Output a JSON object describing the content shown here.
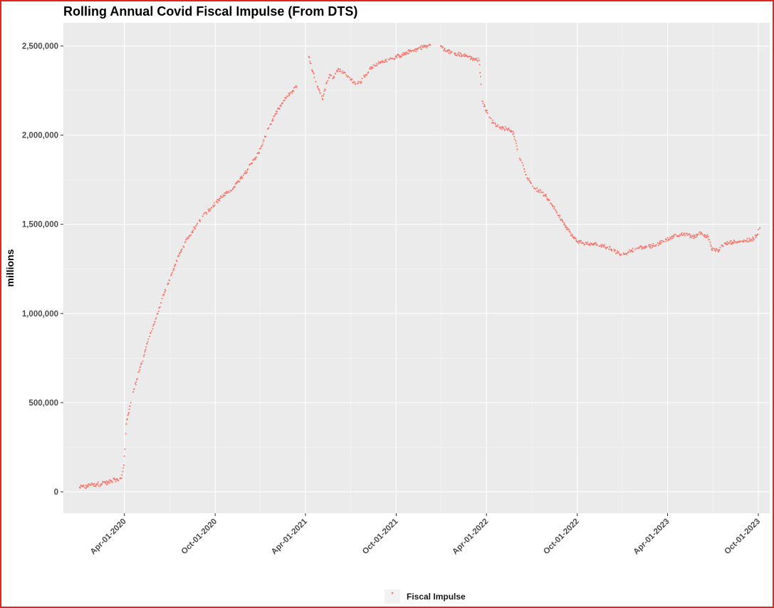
{
  "chart_data": {
    "type": "scatter",
    "title": "Rolling Annual Covid Fiscal Impulse (From DTS)",
    "xlabel": "",
    "ylabel": "millions",
    "x_ticks": [
      "Apr-01-2020",
      "Oct-01-2020",
      "Apr-01-2021",
      "Oct-01-2021",
      "Apr-01-2022",
      "Oct-01-2022",
      "Apr-01-2023",
      "Oct-01-2023"
    ],
    "y_ticks": [
      "0",
      "500,000",
      "1,000,000",
      "1,500,000",
      "2,000,000",
      "2,500,000"
    ],
    "xlim": [
      "2019-11-30",
      "2023-10-24"
    ],
    "ylim": [
      -120000,
      2630000
    ],
    "grid": true,
    "legend_position": "bottom",
    "colors": {
      "series": "#f8766d",
      "panel": "#ebebeb",
      "grid_major": "#ffffff",
      "grid_minor": "#f5f5f5",
      "frame": "#e8231f"
    },
    "series": [
      {
        "name": "Fiscal Impulse",
        "points": [
          [
            "2020-01-02",
            25000
          ],
          [
            "2020-01-09",
            30000
          ],
          [
            "2020-01-16",
            28000
          ],
          [
            "2020-01-23",
            40000
          ],
          [
            "2020-01-30",
            35000
          ],
          [
            "2020-02-06",
            45000
          ],
          [
            "2020-02-13",
            42000
          ],
          [
            "2020-02-20",
            55000
          ],
          [
            "2020-02-27",
            50000
          ],
          [
            "2020-03-05",
            60000
          ],
          [
            "2020-03-12",
            70000
          ],
          [
            "2020-03-19",
            65000
          ],
          [
            "2020-03-26",
            75000
          ],
          [
            "2020-03-31",
            150000
          ],
          [
            "2020-04-05",
            380000
          ],
          [
            "2020-04-12",
            480000
          ],
          [
            "2020-04-19",
            560000
          ],
          [
            "2020-04-26",
            630000
          ],
          [
            "2020-05-03",
            700000
          ],
          [
            "2020-05-10",
            760000
          ],
          [
            "2020-05-17",
            830000
          ],
          [
            "2020-05-24",
            890000
          ],
          [
            "2020-05-31",
            940000
          ],
          [
            "2020-06-07",
            1000000
          ],
          [
            "2020-06-14",
            1060000
          ],
          [
            "2020-06-21",
            1120000
          ],
          [
            "2020-06-28",
            1170000
          ],
          [
            "2020-07-05",
            1220000
          ],
          [
            "2020-07-12",
            1270000
          ],
          [
            "2020-07-19",
            1320000
          ],
          [
            "2020-07-26",
            1360000
          ],
          [
            "2020-08-02",
            1400000
          ],
          [
            "2020-08-09",
            1430000
          ],
          [
            "2020-08-16",
            1460000
          ],
          [
            "2020-08-23",
            1490000
          ],
          [
            "2020-08-30",
            1520000
          ],
          [
            "2020-09-06",
            1545000
          ],
          [
            "2020-09-13",
            1565000
          ],
          [
            "2020-09-20",
            1585000
          ],
          [
            "2020-09-27",
            1605000
          ],
          [
            "2020-10-04",
            1625000
          ],
          [
            "2020-10-11",
            1645000
          ],
          [
            "2020-10-18",
            1660000
          ],
          [
            "2020-10-25",
            1675000
          ],
          [
            "2020-11-01",
            1690000
          ],
          [
            "2020-11-08",
            1710000
          ],
          [
            "2020-11-15",
            1735000
          ],
          [
            "2020-11-22",
            1760000
          ],
          [
            "2020-11-29",
            1785000
          ],
          [
            "2020-12-06",
            1810000
          ],
          [
            "2020-12-13",
            1840000
          ],
          [
            "2020-12-20",
            1870000
          ],
          [
            "2020-12-27",
            1900000
          ],
          [
            "2021-01-03",
            1940000
          ],
          [
            "2021-01-10",
            1990000
          ],
          [
            "2021-01-17",
            2040000
          ],
          [
            "2021-01-24",
            2080000
          ],
          [
            "2021-01-31",
            2120000
          ],
          [
            "2021-02-07",
            2150000
          ],
          [
            "2021-02-14",
            2180000
          ],
          [
            "2021-02-21",
            2210000
          ],
          [
            "2021-02-28",
            2230000
          ],
          [
            "2021-03-07",
            2250000
          ],
          [
            "2021-03-14",
            2270000
          ],
          [
            "2021-04-08",
            2440000
          ],
          [
            "2021-04-15",
            2360000
          ],
          [
            "2021-04-22",
            2300000
          ],
          [
            "2021-04-29",
            2250000
          ],
          [
            "2021-05-06",
            2200000
          ],
          [
            "2021-05-13",
            2290000
          ],
          [
            "2021-05-20",
            2340000
          ],
          [
            "2021-05-27",
            2320000
          ],
          [
            "2021-06-03",
            2360000
          ],
          [
            "2021-06-10",
            2370000
          ],
          [
            "2021-06-17",
            2350000
          ],
          [
            "2021-06-24",
            2330000
          ],
          [
            "2021-07-01",
            2310000
          ],
          [
            "2021-07-08",
            2300000
          ],
          [
            "2021-07-15",
            2290000
          ],
          [
            "2021-07-22",
            2300000
          ],
          [
            "2021-07-29",
            2330000
          ],
          [
            "2021-08-05",
            2350000
          ],
          [
            "2021-08-12",
            2380000
          ],
          [
            "2021-08-19",
            2390000
          ],
          [
            "2021-08-26",
            2400000
          ],
          [
            "2021-09-02",
            2410000
          ],
          [
            "2021-09-09",
            2420000
          ],
          [
            "2021-09-16",
            2425000
          ],
          [
            "2021-09-23",
            2430000
          ],
          [
            "2021-09-30",
            2440000
          ],
          [
            "2021-10-07",
            2445000
          ],
          [
            "2021-10-14",
            2450000
          ],
          [
            "2021-10-21",
            2460000
          ],
          [
            "2021-10-28",
            2470000
          ],
          [
            "2021-11-04",
            2475000
          ],
          [
            "2021-11-11",
            2480000
          ],
          [
            "2021-11-18",
            2490000
          ],
          [
            "2021-11-25",
            2495000
          ],
          [
            "2021-12-02",
            2500000
          ],
          [
            "2021-12-09",
            2505000
          ],
          [
            "2021-12-30",
            2500000
          ],
          [
            "2022-01-06",
            2480000
          ],
          [
            "2022-01-13",
            2470000
          ],
          [
            "2022-01-20",
            2465000
          ],
          [
            "2022-01-27",
            2460000
          ],
          [
            "2022-02-03",
            2455000
          ],
          [
            "2022-02-10",
            2450000
          ],
          [
            "2022-02-17",
            2445000
          ],
          [
            "2022-02-24",
            2440000
          ],
          [
            "2022-03-03",
            2430000
          ],
          [
            "2022-03-10",
            2425000
          ],
          [
            "2022-03-17",
            2420000
          ],
          [
            "2022-03-24",
            2190000
          ],
          [
            "2022-03-31",
            2140000
          ],
          [
            "2022-04-07",
            2100000
          ],
          [
            "2022-04-14",
            2070000
          ],
          [
            "2022-04-21",
            2050000
          ],
          [
            "2022-04-28",
            2045000
          ],
          [
            "2022-05-05",
            2040000
          ],
          [
            "2022-05-12",
            2035000
          ],
          [
            "2022-05-19",
            2025000
          ],
          [
            "2022-05-26",
            2010000
          ],
          [
            "2022-06-02",
            1920000
          ],
          [
            "2022-06-09",
            1860000
          ],
          [
            "2022-06-16",
            1810000
          ],
          [
            "2022-06-23",
            1760000
          ],
          [
            "2022-06-30",
            1730000
          ],
          [
            "2022-07-07",
            1700000
          ],
          [
            "2022-07-14",
            1690000
          ],
          [
            "2022-07-21",
            1680000
          ],
          [
            "2022-07-28",
            1660000
          ],
          [
            "2022-08-04",
            1640000
          ],
          [
            "2022-08-11",
            1610000
          ],
          [
            "2022-08-18",
            1580000
          ],
          [
            "2022-08-25",
            1550000
          ],
          [
            "2022-09-01",
            1520000
          ],
          [
            "2022-09-08",
            1490000
          ],
          [
            "2022-09-15",
            1460000
          ],
          [
            "2022-09-22",
            1430000
          ],
          [
            "2022-09-29",
            1410000
          ],
          [
            "2022-10-06",
            1400000
          ],
          [
            "2022-10-13",
            1395000
          ],
          [
            "2022-10-20",
            1390000
          ],
          [
            "2022-10-27",
            1385000
          ],
          [
            "2022-11-03",
            1390000
          ],
          [
            "2022-11-10",
            1385000
          ],
          [
            "2022-11-17",
            1380000
          ],
          [
            "2022-11-24",
            1375000
          ],
          [
            "2022-12-01",
            1370000
          ],
          [
            "2022-12-08",
            1360000
          ],
          [
            "2022-12-15",
            1350000
          ],
          [
            "2022-12-22",
            1340000
          ],
          [
            "2022-12-29",
            1330000
          ],
          [
            "2023-01-05",
            1335000
          ],
          [
            "2023-01-12",
            1345000
          ],
          [
            "2023-01-19",
            1355000
          ],
          [
            "2023-01-26",
            1360000
          ],
          [
            "2023-02-02",
            1365000
          ],
          [
            "2023-02-09",
            1370000
          ],
          [
            "2023-02-16",
            1370000
          ],
          [
            "2023-02-23",
            1375000
          ],
          [
            "2023-03-02",
            1380000
          ],
          [
            "2023-03-09",
            1385000
          ],
          [
            "2023-03-16",
            1395000
          ],
          [
            "2023-03-23",
            1405000
          ],
          [
            "2023-03-30",
            1415000
          ],
          [
            "2023-04-06",
            1425000
          ],
          [
            "2023-04-13",
            1430000
          ],
          [
            "2023-04-20",
            1435000
          ],
          [
            "2023-04-27",
            1440000
          ],
          [
            "2023-05-04",
            1445000
          ],
          [
            "2023-05-11",
            1440000
          ],
          [
            "2023-05-18",
            1435000
          ],
          [
            "2023-05-25",
            1430000
          ],
          [
            "2023-06-01",
            1445000
          ],
          [
            "2023-06-08",
            1450000
          ],
          [
            "2023-06-15",
            1440000
          ],
          [
            "2023-06-22",
            1430000
          ],
          [
            "2023-06-29",
            1360000
          ],
          [
            "2023-07-06",
            1355000
          ],
          [
            "2023-07-13",
            1350000
          ],
          [
            "2023-07-20",
            1380000
          ],
          [
            "2023-07-27",
            1390000
          ],
          [
            "2023-08-03",
            1395000
          ],
          [
            "2023-08-10",
            1400000
          ],
          [
            "2023-08-17",
            1400000
          ],
          [
            "2023-08-24",
            1405000
          ],
          [
            "2023-08-31",
            1405000
          ],
          [
            "2023-09-07",
            1410000
          ],
          [
            "2023-09-14",
            1410000
          ],
          [
            "2023-09-21",
            1420000
          ],
          [
            "2023-09-28",
            1440000
          ],
          [
            "2023-10-04",
            1480000
          ]
        ]
      }
    ]
  }
}
